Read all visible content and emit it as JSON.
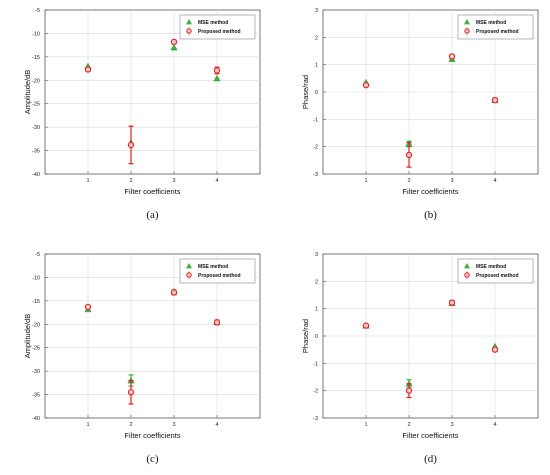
{
  "chart_data": [
    {
      "type": "scatter",
      "panel": "a",
      "caption": "(a)",
      "xlabel": "Filter coefficients",
      "ylabel": "Amplitude/dB",
      "xlim": [
        0,
        5
      ],
      "ylim": [
        -40,
        -5
      ],
      "xticks": [
        "1",
        "2",
        "3",
        "4"
      ],
      "yticks": [
        "-5",
        "-10",
        "-15",
        "-20",
        "-25",
        "-30",
        "-35",
        "-40"
      ],
      "grid": true,
      "legend_position": "top-right",
      "series": [
        {
          "name": "MSE method",
          "marker": "triangle",
          "color": "#3cb043",
          "x": [
            1,
            2,
            3,
            4
          ],
          "y": [
            -17.0,
            -33.3,
            -13.0,
            -19.6
          ],
          "err": [
            0.0,
            0.0,
            0.0,
            0.0
          ]
        },
        {
          "name": "Proposed method",
          "marker": "circle",
          "color": "#e02020",
          "x": [
            1,
            2,
            3,
            4
          ],
          "y": [
            -17.7,
            -33.8,
            -11.8,
            -17.9
          ],
          "err": [
            0.4,
            4.0,
            0.4,
            0.7
          ]
        }
      ]
    },
    {
      "type": "scatter",
      "panel": "b",
      "caption": "(b)",
      "xlabel": "Filter coefficients",
      "ylabel": "Phase/rad",
      "xlim": [
        0,
        5
      ],
      "ylim": [
        -3,
        3
      ],
      "xticks": [
        "1",
        "2",
        "3",
        "4"
      ],
      "yticks": [
        "3",
        "2",
        "1",
        "0",
        "-1",
        "-2",
        "-3"
      ],
      "grid": true,
      "legend_position": "top-right",
      "series": [
        {
          "name": "MSE method",
          "marker": "triangle",
          "color": "#3cb043",
          "x": [
            1,
            2,
            3,
            4
          ],
          "y": [
            0.35,
            -1.9,
            1.2,
            -0.3
          ],
          "err": [
            0.0,
            0.1,
            0.0,
            0.0
          ]
        },
        {
          "name": "Proposed method",
          "marker": "circle",
          "color": "#e02020",
          "x": [
            1,
            2,
            3,
            4
          ],
          "y": [
            0.25,
            -2.3,
            1.3,
            -0.3
          ],
          "err": [
            0.05,
            0.45,
            0.08,
            0.08
          ]
        }
      ]
    },
    {
      "type": "scatter",
      "panel": "c",
      "caption": "(c)",
      "xlabel": "Filter coefficients",
      "ylabel": "Amplitude/dB",
      "xlim": [
        0,
        5
      ],
      "ylim": [
        -40,
        -5
      ],
      "xticks": [
        "1",
        "2",
        "3",
        "4"
      ],
      "yticks": [
        "-5",
        "-10",
        "-15",
        "-20",
        "-25",
        "-30",
        "-35",
        "-40"
      ],
      "grid": true,
      "legend_position": "top-right",
      "series": [
        {
          "name": "MSE method",
          "marker": "triangle",
          "color": "#3cb043",
          "x": [
            1,
            2,
            3,
            4
          ],
          "y": [
            -16.8,
            -32.0,
            -13.0,
            -19.5
          ],
          "err": [
            0.3,
            1.2,
            0.3,
            0.4
          ]
        },
        {
          "name": "Proposed method",
          "marker": "circle",
          "color": "#e02020",
          "x": [
            1,
            2,
            3,
            4
          ],
          "y": [
            -16.3,
            -34.5,
            -13.2,
            -19.6
          ],
          "err": [
            0.3,
            2.5,
            0.5,
            0.5
          ]
        }
      ]
    },
    {
      "type": "scatter",
      "panel": "d",
      "caption": "(d)",
      "xlabel": "Filter coefficients",
      "ylabel": "Phase/rad",
      "xlim": [
        0,
        5
      ],
      "ylim": [
        -3,
        3
      ],
      "xticks": [
        "1",
        "2",
        "3",
        "4"
      ],
      "yticks": [
        "3",
        "2",
        "1",
        "0",
        "-1",
        "-2",
        "-3"
      ],
      "grid": true,
      "legend_position": "top-right",
      "series": [
        {
          "name": "MSE method",
          "marker": "triangle",
          "color": "#3cb043",
          "x": [
            1,
            2,
            3,
            4
          ],
          "y": [
            0.38,
            -1.75,
            1.2,
            -0.38
          ],
          "err": [
            0.0,
            0.15,
            0.0,
            0.0
          ]
        },
        {
          "name": "Proposed method",
          "marker": "circle",
          "color": "#e02020",
          "x": [
            1,
            2,
            3,
            4
          ],
          "y": [
            0.38,
            -2.0,
            1.22,
            -0.5
          ],
          "err": [
            0.05,
            0.25,
            0.08,
            0.05
          ]
        }
      ]
    }
  ]
}
